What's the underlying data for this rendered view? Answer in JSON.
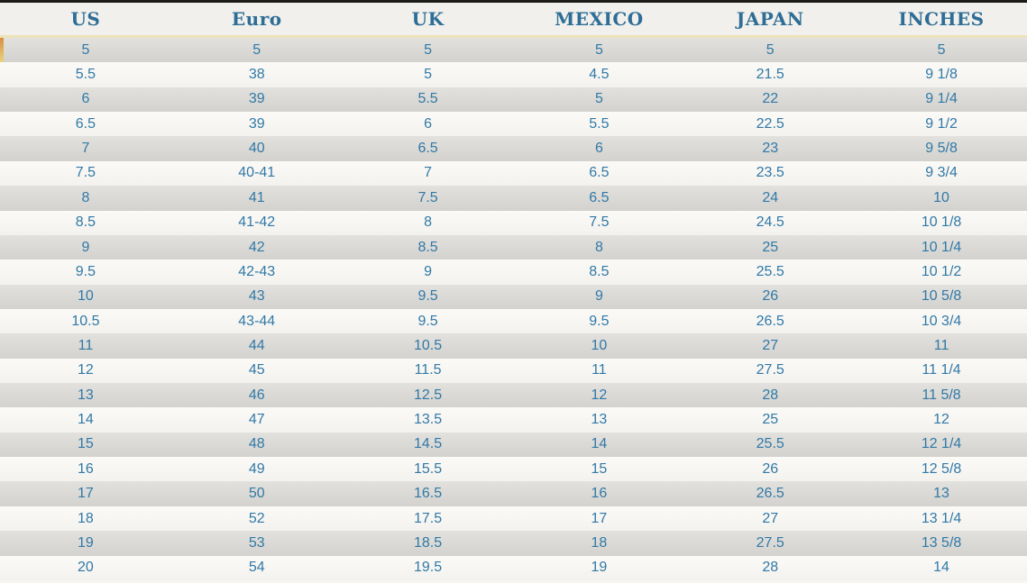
{
  "chart_data": {
    "type": "table",
    "columns": [
      "US",
      "Euro",
      "UK",
      "MEXICO",
      "JAPAN",
      "INCHES"
    ],
    "rows": [
      [
        "5",
        "5",
        "5",
        "5",
        "5",
        "5"
      ],
      [
        "5.5",
        "38",
        "5",
        "4.5",
        "21.5",
        "9 1/8"
      ],
      [
        "6",
        "39",
        "5.5",
        "5",
        "22",
        "9 1/4"
      ],
      [
        "6.5",
        "39",
        "6",
        "5.5",
        "22.5",
        "9 1/2"
      ],
      [
        "7",
        "40",
        "6.5",
        "6",
        "23",
        "9 5/8"
      ],
      [
        "7.5",
        "40-41",
        "7",
        "6.5",
        "23.5",
        "9 3/4"
      ],
      [
        "8",
        "41",
        "7.5",
        "6.5",
        "24",
        "10"
      ],
      [
        "8.5",
        "41-42",
        "8",
        "7.5",
        "24.5",
        "10 1/8"
      ],
      [
        "9",
        "42",
        "8.5",
        "8",
        "25",
        "10 1/4"
      ],
      [
        "9.5",
        "42-43",
        "9",
        "8.5",
        "25.5",
        "10 1/2"
      ],
      [
        "10",
        "43",
        "9.5",
        "9",
        "26",
        "10 5/8"
      ],
      [
        "10.5",
        "43-44",
        "9.5",
        "9.5",
        "26.5",
        "10 3/4"
      ],
      [
        "11",
        "44",
        "10.5",
        "10",
        "27",
        "11"
      ],
      [
        "12",
        "45",
        "11.5",
        "11",
        "27.5",
        "11 1/4"
      ],
      [
        "13",
        "46",
        "12.5",
        "12",
        "28",
        "11 5/8"
      ],
      [
        "14",
        "47",
        "13.5",
        "13",
        "25",
        "12"
      ],
      [
        "15",
        "48",
        "14.5",
        "14",
        "25.5",
        "12 1/4"
      ],
      [
        "16",
        "49",
        "15.5",
        "15",
        "26",
        "12 5/8"
      ],
      [
        "17",
        "50",
        "16.5",
        "16",
        "26.5",
        "13"
      ],
      [
        "18",
        "52",
        "17.5",
        "17",
        "27",
        "13 1/4"
      ],
      [
        "19",
        "53",
        "18.5",
        "18",
        "27.5",
        "13 5/8"
      ],
      [
        "20",
        "54",
        "19.5",
        "19",
        "28",
        "14"
      ]
    ]
  },
  "colors": {
    "header_text": "#2e6d96",
    "cell_text": "#3179a7",
    "header_bg": "#f1f0ec",
    "divider": "#ece3b8",
    "top_bar": "#1c1b17",
    "row_dark_top": "#e2e1dd",
    "row_dark_bottom": "#d3d2ce",
    "row_light_top": "#fbfaf7",
    "row_light_bottom": "#f3f2ee",
    "accent_left_marker": "#d98f3f"
  }
}
